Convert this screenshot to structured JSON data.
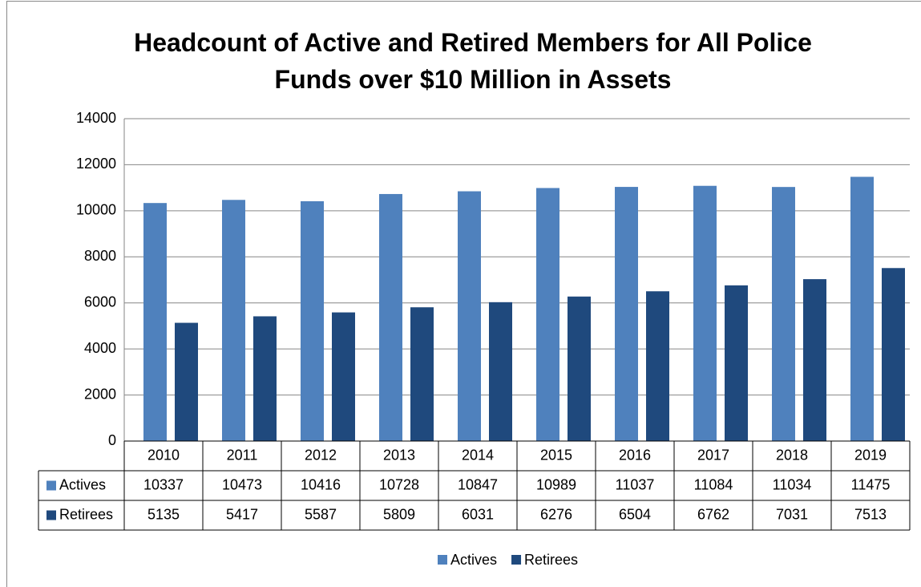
{
  "chart_data": {
    "type": "bar",
    "title": "Headcount of Active and Retired Members for All Police Funds over $10 Million in Assets",
    "categories": [
      "2010",
      "2011",
      "2012",
      "2013",
      "2014",
      "2015",
      "2016",
      "2017",
      "2018",
      "2019"
    ],
    "series": [
      {
        "name": "Actives",
        "color": "#4f81bd",
        "values": [
          10337,
          10473,
          10416,
          10728,
          10847,
          10989,
          11037,
          11084,
          11034,
          11475
        ]
      },
      {
        "name": "Retirees",
        "color": "#1f497d",
        "values": [
          5135,
          5417,
          5587,
          5809,
          6031,
          6276,
          6504,
          6762,
          7031,
          7513
        ]
      }
    ],
    "ylim": [
      0,
      14000
    ],
    "yticks": [
      0,
      2000,
      4000,
      6000,
      8000,
      10000,
      12000,
      14000
    ],
    "grid": true
  }
}
